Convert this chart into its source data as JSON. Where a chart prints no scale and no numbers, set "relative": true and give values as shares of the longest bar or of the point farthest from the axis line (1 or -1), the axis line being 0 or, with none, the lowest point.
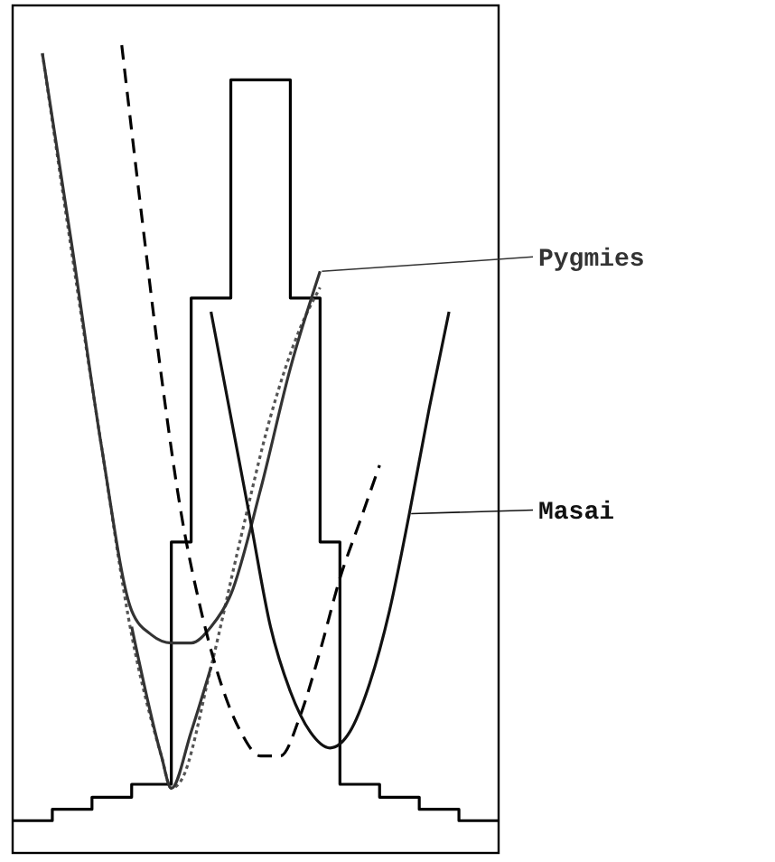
{
  "chart_data": {
    "type": "line",
    "relative": true,
    "categories": [
      null,
      null,
      null,
      null,
      null,
      null,
      null,
      null,
      null,
      null,
      null,
      null,
      null,
      null,
      null,
      null,
      null,
      null,
      null,
      null,
      null,
      null,
      null,
      null,
      null,
      null,
      null,
      null,
      null,
      null,
      null,
      null,
      null,
      null,
      null,
      null,
      null,
      null,
      null,
      null,
      null,
      null,
      null,
      null,
      null,
      null,
      null,
      null,
      null,
      null
    ],
    "series": [
      {
        "type": "step",
        "color": "#000000",
        "line_style": "solid",
        "values": [
          0.04,
          0.04,
          0.04,
          0.04,
          0.054,
          0.054,
          0.054,
          0.054,
          0.069,
          0.069,
          0.069,
          0.069,
          0.085,
          0.085,
          0.085,
          0.085,
          0.385,
          0.385,
          0.687,
          0.687,
          0.687,
          0.687,
          0.957,
          0.957,
          0.957,
          0.957,
          0.957,
          0.957,
          0.687,
          0.687,
          0.687,
          0.385,
          0.385,
          0.085,
          0.085,
          0.085,
          0.085,
          0.069,
          0.069,
          0.069,
          0.069,
          0.054,
          0.054,
          0.054,
          0.054,
          0.04,
          0.04,
          0.04,
          0.04,
          0.04
        ]
      },
      {
        "color": "#555555",
        "line_style": "dotted",
        "values": [
          null,
          null,
          null,
          0.99,
          null,
          null,
          0.74,
          null,
          null,
          0.5,
          null,
          null,
          0.27,
          null,
          null,
          0.12,
          0.08,
          0.09,
          null,
          null,
          0.23,
          null,
          null,
          0.39,
          null,
          null,
          0.54,
          null,
          null,
          0.65,
          null,
          0.7,
          null,
          null,
          null,
          null,
          null,
          null,
          null,
          null,
          null,
          null,
          null,
          null,
          null,
          null,
          null,
          null,
          null,
          null
        ]
      },
      {
        "name": "Pygmies",
        "color": "#333333",
        "line_style": "solid",
        "values": [
          null,
          null,
          null,
          0.99,
          null,
          null,
          0.75,
          null,
          null,
          0.5,
          null,
          null,
          0.3,
          null,
          0.27,
          null,
          0.26,
          null,
          0.26,
          null,
          0.28,
          null,
          0.32,
          null,
          null,
          0.45,
          null,
          null,
          0.6,
          null,
          null,
          0.72,
          null,
          null,
          null,
          null,
          null,
          null,
          null,
          null,
          null,
          null,
          null,
          null,
          null,
          null,
          null,
          null,
          null,
          null
        ]
      },
      {
        "color": "#333333",
        "line_style": "solid",
        "values": [
          null,
          null,
          null,
          null,
          null,
          null,
          null,
          null,
          null,
          null,
          null,
          null,
          0.28,
          null,
          null,
          0.12,
          0.08,
          null,
          0.15,
          null,
          0.23,
          null,
          null,
          null,
          null,
          null,
          null,
          null,
          null,
          null,
          null,
          null,
          null,
          null,
          null,
          null,
          null,
          null,
          null,
          null,
          null,
          null,
          null,
          null,
          null,
          null,
          null,
          null,
          null,
          null
        ]
      },
      {
        "color": "#000000",
        "line_style": "dashed",
        "values": [
          null,
          null,
          null,
          null,
          null,
          null,
          null,
          null,
          null,
          null,
          null,
          1,
          null,
          0.79,
          null,
          0.59,
          null,
          0.42,
          null,
          0.3,
          null,
          0.21,
          null,
          0.15,
          null,
          0.12,
          null,
          0.12,
          null,
          0.17,
          null,
          0.25,
          null,
          0.34,
          null,
          0.41,
          null,
          0.48,
          null,
          null,
          null,
          null,
          null,
          null,
          null,
          null,
          null,
          null,
          null,
          null
        ]
      },
      {
        "name": "Masai",
        "color": "#111111",
        "line_style": "solid",
        "values": [
          null,
          null,
          null,
          null,
          null,
          null,
          null,
          null,
          null,
          null,
          null,
          null,
          null,
          null,
          null,
          null,
          null,
          null,
          null,
          null,
          0.67,
          null,
          0.54,
          null,
          0.41,
          null,
          0.28,
          null,
          0.2,
          null,
          0.15,
          null,
          0.13,
          null,
          0.15,
          null,
          0.21,
          null,
          0.3,
          null,
          0.42,
          null,
          0.55,
          null,
          0.67,
          null,
          null,
          null,
          null,
          null
        ]
      }
    ]
  }
}
